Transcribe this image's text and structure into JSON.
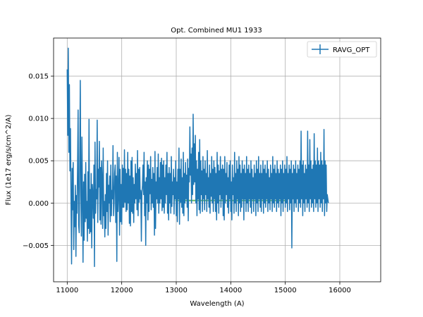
{
  "chart_data": {
    "type": "line",
    "title": "Opt. Combined MU1 1933",
    "xlabel": "Wavelength (A)",
    "ylabel": "Flux (1e17 erg/s/cm^2/A)",
    "xlim": [
      10750,
      16750
    ],
    "ylim": [
      -0.0093,
      0.0195
    ],
    "xticks": [
      11000,
      12000,
      13000,
      14000,
      15000,
      16000
    ],
    "xtick_labels": [
      "11000",
      "12000",
      "13000",
      "14000",
      "15000",
      "16000"
    ],
    "yticks": [
      -0.005,
      0.0,
      0.005,
      0.01,
      0.015
    ],
    "ytick_labels": [
      "−0.005",
      "0.000",
      "0.005",
      "0.010",
      "0.015"
    ],
    "grid": true,
    "legend": {
      "position": "top-right",
      "entries": [
        "RAVG_OPT"
      ]
    },
    "series": [
      {
        "name": "RAVG_OPT",
        "color": "#1f77b4",
        "x_start": 11000,
        "x_step": 10,
        "values": [
          0.0158,
          0.008,
          0.0183,
          0.006,
          0.014,
          0.0038,
          0.0088,
          0.0,
          -0.0072,
          0.0041,
          -0.0008,
          0.0048,
          -0.0055,
          0.0002,
          -0.0028,
          0.0021,
          -0.0063,
          0.0009,
          -0.0012,
          0.0042,
          0.011,
          -0.0026,
          -0.0035,
          0.0052,
          0.0145,
          0.0013,
          -0.0039,
          0.0078,
          0.001,
          -0.007,
          0.0025,
          -0.0044,
          0.0034,
          -0.0022,
          0.0048,
          -0.0018,
          0.0002,
          -0.0045,
          0.0037,
          -0.003,
          0.0099,
          -0.0036,
          0.0016,
          -0.0034,
          0.0035,
          -0.0053,
          0.0022,
          0.001,
          -0.0018,
          0.0045,
          -0.0075,
          0.0072,
          -0.0012,
          0.0016,
          0.0005,
          0.0098,
          -0.0023,
          0.004,
          0.0019,
          0.0073,
          -0.002,
          0.0042,
          -0.0025,
          0.005,
          0.0028,
          -0.003,
          0.0065,
          -0.0015,
          0.0002,
          -0.004,
          0.001,
          -0.003,
          0.0035,
          -0.001,
          0.005,
          -0.0038,
          0.0021,
          0.0,
          0.0032,
          -0.0022,
          0.0045,
          -0.0015,
          0.0015,
          0.0005,
          0.0068,
          -0.0015,
          0.0,
          0.0035,
          0.0045,
          -0.0023,
          0.0032,
          -0.0069,
          0.006,
          -0.001,
          0.0012,
          0.0054,
          -0.0038,
          0.004,
          -0.0022,
          0.0022,
          -0.0025,
          0.0045,
          -0.0005,
          0.0041,
          -0.0005,
          0.0063,
          0.0001,
          0.004,
          -0.001,
          0.0035,
          -0.0008,
          0.006,
          0.0,
          0.004,
          -0.0024,
          0.0032,
          -0.0027,
          0.005,
          -0.001,
          0.0054,
          -0.0012,
          0.003,
          -0.0023,
          0.0022,
          0.0,
          0.0046,
          0.0005,
          0.0035,
          -0.0008,
          0.0062,
          -0.0015,
          0.004,
          0.0001,
          0.0042,
          0.0005,
          0.0015,
          -0.0045,
          0.0012,
          0.002,
          0.0045,
          0.001,
          0.006,
          -0.0015,
          0.0025,
          -0.005,
          0.003,
          0.0,
          0.005,
          -0.002,
          0.0045,
          -0.001,
          0.004,
          0.0011,
          0.0055,
          -0.0008,
          0.0028,
          0.0,
          0.0042,
          -0.0005,
          0.0035,
          -0.0038,
          0.0061,
          -0.003,
          0.0025,
          0.0005,
          0.0042,
          0.0,
          0.0058,
          -0.0012,
          0.003,
          0.0,
          0.0048,
          0.0005,
          0.0053,
          -0.0009,
          0.0045,
          -0.0005,
          0.005,
          -0.0012,
          0.003,
          0.0,
          0.0045,
          0.001,
          0.006,
          -0.0012,
          0.0035,
          -0.002,
          0.0042,
          0.0,
          0.0035,
          -0.0012,
          0.0055,
          -0.0004,
          0.0025,
          0.001,
          0.004,
          -0.0013,
          0.003,
          0.0005,
          0.005,
          -0.0015,
          0.0025,
          -0.0022,
          0.004,
          0.0005,
          0.0065,
          -0.0025,
          0.004,
          0.0001,
          0.0052,
          -0.0005,
          0.003,
          -0.0012,
          0.006,
          -0.0015,
          0.0035,
          0.0,
          0.0048,
          0.0005,
          0.0033,
          -0.0005,
          0.0052,
          -0.0021,
          0.0041,
          0.0025,
          0.009,
          0.0033,
          0.0058,
          0.0,
          0.0065,
          0.001,
          0.0105,
          0.0022,
          0.007,
          0.0025,
          0.008,
          0.0,
          0.005,
          -0.0015,
          0.004,
          0.0005,
          0.006,
          -0.0008,
          0.0075,
          -0.0012,
          0.005,
          0.001,
          0.0038,
          -0.001,
          0.0055,
          0.0005,
          0.004,
          -0.0008,
          0.005,
          0.001,
          0.0035,
          -0.001,
          0.0062,
          0.0005,
          0.003,
          -0.0005,
          0.0045,
          -0.0012,
          0.0035,
          0.0008,
          0.0055,
          0.0,
          0.004,
          -0.001,
          0.005,
          0.0005,
          0.0042,
          -0.001,
          0.0035,
          -0.002,
          0.006,
          0.0,
          0.0045,
          -0.0012,
          0.0038,
          0.001,
          0.0055,
          -0.0005,
          0.004,
          0.0005,
          0.0045,
          -0.0015,
          0.004,
          -0.002,
          0.0055,
          0.0,
          0.0035,
          0.001,
          0.0048,
          -0.0005,
          0.003,
          -0.0012,
          0.0045,
          0.0005,
          0.005,
          -0.001,
          0.0025,
          -0.002,
          0.0045,
          0.001,
          0.003,
          -0.0012,
          0.006,
          0.0,
          0.0035,
          -0.001,
          0.005,
          0.0005,
          0.004,
          -0.0015,
          0.0055,
          0.0,
          0.0045,
          -0.001,
          0.0035,
          -0.0005,
          0.005,
          0.0005,
          0.004,
          -0.002,
          0.0045,
          0.0005,
          0.0035,
          -0.001,
          0.0055,
          0.0,
          0.004,
          -0.001,
          0.0045,
          0.0005,
          0.0035,
          -0.0005,
          0.005,
          -0.0012,
          0.004,
          0.0005,
          0.003,
          -0.001,
          0.0045,
          0.0005,
          0.0035,
          -0.0015,
          0.005,
          0.0,
          0.004,
          -0.001,
          0.0055,
          0.0005,
          0.0035,
          -0.0005,
          0.0045,
          -0.001,
          0.0035,
          0.0005,
          0.005,
          -0.0012,
          0.004,
          0.0,
          0.0045,
          -0.0005,
          0.0035,
          0.0005,
          0.005,
          -0.001,
          0.004,
          0.0,
          0.003,
          -0.0008,
          0.0045,
          0.0005,
          0.0035,
          -0.001,
          0.0055,
          0.0,
          0.004,
          -0.0005,
          0.0045,
          0.0005,
          0.0035,
          -0.001,
          0.005,
          0.0,
          0.004,
          -0.0005,
          0.0035,
          0.0005,
          0.0045,
          -0.0015,
          0.004,
          0.0,
          0.005,
          -0.001,
          0.0035,
          0.0005,
          0.0045,
          -0.0005,
          0.004,
          0.0,
          0.0055,
          -0.001,
          0.0035,
          0.0005,
          0.0045,
          -0.0008,
          0.004,
          0.0,
          0.005,
          -0.0053,
          0.0035,
          0.0005,
          0.0045,
          -0.001,
          0.004,
          0.0,
          0.005,
          -0.0005,
          0.0035,
          0.0005,
          0.0045,
          -0.001,
          0.004,
          0.0,
          0.005,
          -0.0005,
          0.0085,
          0.0005,
          0.0045,
          -0.0015,
          0.005,
          0.0,
          0.0035,
          -0.001,
          0.0045,
          0.0005,
          0.004,
          -0.0005,
          0.0085,
          0.0,
          0.0045,
          -0.001,
          0.0075,
          0.0005,
          0.005,
          -0.0005,
          0.004,
          0.0,
          0.0045,
          -0.001,
          0.0082,
          0.0005,
          0.005,
          -0.0005,
          0.0045,
          0.0,
          0.0065,
          -0.001,
          0.005,
          0.0005,
          0.0045,
          -0.0005,
          0.006,
          0.0,
          0.005,
          -0.001,
          0.0045,
          0.0005,
          0.0087,
          -0.0015,
          0.005,
          0.0,
          0.0045,
          -0.001,
          0.001,
          0.0005,
          0.0
        ]
      },
      {
        "name": "",
        "color": "#2ca02c",
        "x": [
          12980,
          15000
        ],
        "values": [
          0.0003,
          0.0003
        ]
      }
    ]
  }
}
